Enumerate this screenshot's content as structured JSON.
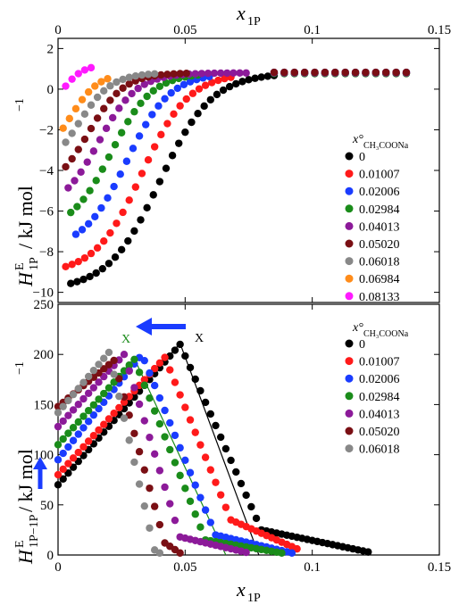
{
  "chart_data": [
    {
      "type": "scatter",
      "panel": "top",
      "xlabel": "x",
      "xlabel_sub": "1P",
      "ylabel": "H",
      "ylabel_sup": "E",
      "ylabel_sub": "1P",
      "ylabel_unit": " / kJ mol",
      "ylabel_unit_sup": "−1",
      "xlim": [
        0,
        0.15
      ],
      "ylim": [
        -10.5,
        2.5
      ],
      "x_ticks": [
        0,
        0.05,
        0.1,
        0.15
      ],
      "x_tick_labels": [
        "0",
        "0.05",
        "0.1",
        "0.15"
      ],
      "y_ticks": [
        -10,
        -8,
        -6,
        -4,
        -2,
        0,
        2
      ],
      "y_tick_labels": [
        "−10",
        "−8",
        "−6",
        "−4",
        "−2",
        "0",
        "2"
      ],
      "legend_title": "x°",
      "legend_title_sub": "CH₃COONa",
      "legend_position": "right",
      "series": [
        {
          "name": "0",
          "color": "#000000",
          "x0": 0.005,
          "end": 0.085,
          "lo": -9.9,
          "hi": 0.8,
          "mid": 0.04,
          "s": 0.0102
        },
        {
          "name": "0.01007",
          "color": "#ff1a1a",
          "x0": 0.003,
          "end": 0.07,
          "lo": -9.1,
          "hi": 0.8,
          "mid": 0.033,
          "s": 0.0092
        },
        {
          "name": "0.02006",
          "color": "#1a3cff",
          "x0": 0.007,
          "end": 0.06,
          "lo": -7.9,
          "hi": 0.8,
          "mid": 0.027,
          "s": 0.0085
        },
        {
          "name": "0.02984",
          "color": "#1a8c1a",
          "x0": 0.005,
          "end": 0.057,
          "lo": -7.0,
          "hi": 0.8,
          "mid": 0.021,
          "s": 0.008
        },
        {
          "name": "0.04013",
          "color": "#8c1a99",
          "x0": 0.004,
          "end": 0.075,
          "lo": -6.0,
          "hi": 0.8,
          "mid": 0.016,
          "s": 0.0075
        },
        {
          "name": "0.05020",
          "color": "#7a0f14",
          "x0": 0.003,
          "end": 0.051,
          "lo": -5.1,
          "hi": 0.8,
          "mid": 0.012,
          "s": 0.007
        },
        {
          "name": "0.06018",
          "color": "#888888",
          "x0": 0.003,
          "end": 0.04,
          "lo": -4.2,
          "hi": 0.8,
          "mid": 0.008,
          "s": 0.0065
        },
        {
          "name": "0.06984",
          "color": "#ff8c1a",
          "x0": 0.002,
          "end": 0.02,
          "lo": -3.5,
          "hi": 0.8,
          "mid": 0.005,
          "s": 0.0055
        },
        {
          "name": "0.08133",
          "color": "#ff1aff",
          "x0": 0.003,
          "end": 0.014,
          "lo": -1.2,
          "hi": 1.2,
          "mid": 0.002,
          "s": 0.004
        }
      ],
      "tail": {
        "x_start": 0.085,
        "x_end": 0.137,
        "y": 0.8
      }
    },
    {
      "type": "scatter",
      "panel": "bottom",
      "xlabel": "x",
      "xlabel_sub": "1P",
      "ylabel": "H",
      "ylabel_sup": "E",
      "ylabel_sub": "1P−1P",
      "ylabel_unit": " / kJ mol",
      "ylabel_unit_sup": "−1",
      "xlim": [
        0,
        0.15
      ],
      "ylim": [
        0,
        250
      ],
      "x_ticks": [
        0,
        0.05,
        0.1,
        0.15
      ],
      "x_tick_labels": [
        "0",
        "0.05",
        "0.1",
        "0.15"
      ],
      "y_ticks": [
        0,
        50,
        100,
        150,
        200,
        250
      ],
      "y_tick_labels": [
        "0",
        "50",
        "100",
        "150",
        "200",
        "250"
      ],
      "legend_title": "x°",
      "legend_title_sub": "CH₃COONa",
      "legend_position": "top-right",
      "series": [
        {
          "name": "0",
          "color": "#000000",
          "x0": 0.0,
          "y0": 70,
          "px": 0.048,
          "peak": 210,
          "fall_end": 0.08,
          "tail_y": 25,
          "x_end": 0.122,
          "end_y": 3
        },
        {
          "name": "0.01007",
          "color": "#ff1a1a",
          "x0": 0.0,
          "y0": 80,
          "px": 0.042,
          "peak": 197,
          "fall_end": 0.068,
          "tail_y": 35,
          "x_end": 0.095,
          "end_y": 5
        },
        {
          "name": "0.02006",
          "color": "#1a3cff",
          "x0": 0.0,
          "y0": 95,
          "px": 0.033,
          "peak": 200,
          "fall_end": 0.062,
          "tail_y": 20,
          "x_end": 0.092,
          "end_y": 2
        },
        {
          "name": "0.02984",
          "color": "#1a8c1a",
          "x0": 0.0,
          "y0": 110,
          "px": 0.03,
          "peak": 195,
          "fall_end": 0.058,
          "tail_y": 15,
          "x_end": 0.088,
          "end_y": 2
        },
        {
          "name": "0.04013",
          "color": "#8c1a99",
          "x0": 0.0,
          "y0": 128,
          "px": 0.026,
          "peak": 200,
          "fall_end": 0.048,
          "tail_y": 18,
          "x_end": 0.075,
          "end_y": 2
        },
        {
          "name": "0.05020",
          "color": "#7a0f14",
          "x0": 0.0,
          "y0": 148,
          "px": 0.022,
          "peak": 194,
          "fall_end": 0.042,
          "tail_y": 12,
          "x_end": 0.048,
          "end_y": 2
        },
        {
          "name": "0.06018",
          "color": "#888888",
          "x0": 0.0,
          "y0": 142,
          "px": 0.02,
          "peak": 202,
          "fall_end": 0.038,
          "tail_y": 5,
          "x_end": 0.04,
          "end_y": 2
        }
      ],
      "fit_lines": [
        {
          "color": "#000000",
          "points": [
            [
              0.0,
              70
            ],
            [
              0.048,
              211
            ],
            [
              0.079,
              0
            ]
          ]
        },
        {
          "color": "#1a8c1a",
          "points": [
            [
              0.0,
              110
            ],
            [
              0.03,
              196
            ],
            [
              0.066,
              0
            ]
          ]
        }
      ],
      "annotations": {
        "X_black": "X",
        "X_green": "X",
        "arrow_left": "←",
        "arrow_up": "↑"
      }
    }
  ]
}
